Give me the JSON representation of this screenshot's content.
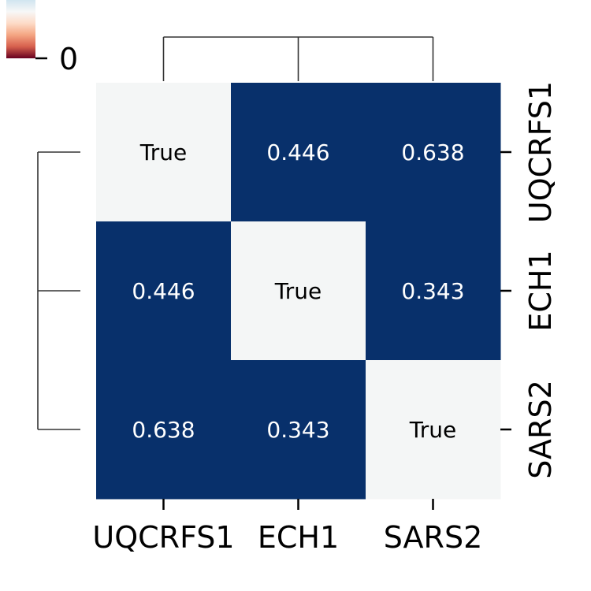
{
  "chart_data": {
    "type": "heatmap",
    "variant": "clustermap",
    "rows": [
      "UQCRFS1",
      "ECH1",
      "SARS2"
    ],
    "columns": [
      "UQCRFS1",
      "ECH1",
      "SARS2"
    ],
    "cells": [
      [
        {
          "value": 1.0,
          "label": "True"
        },
        {
          "value": 0.446,
          "label": "0.446"
        },
        {
          "value": 0.638,
          "label": "0.638"
        }
      ],
      [
        {
          "value": 0.446,
          "label": "0.446"
        },
        {
          "value": 1.0,
          "label": "True"
        },
        {
          "value": 0.343,
          "label": "0.343"
        }
      ],
      [
        {
          "value": 0.638,
          "label": "0.638"
        },
        {
          "value": 0.343,
          "label": "0.343"
        },
        {
          "value": 1.0,
          "label": "True"
        }
      ]
    ],
    "colormap": "RdBu_r",
    "colors": {
      "high": "#08306b",
      "diagonal": "#f4f6f6",
      "text_on_dark": "#ffffff",
      "text_on_light": "#000000"
    },
    "colorbar": {
      "tick_labels": [
        "0"
      ],
      "colors": [
        "#67001f",
        "#d6604d",
        "#f4a582",
        "#fddbc7",
        "#f7f7f7",
        "#d1e5f0"
      ]
    },
    "row_labels_side": "right",
    "column_labels_side": "bottom",
    "dendrograms": [
      "top",
      "left"
    ],
    "title": "",
    "xlabel": "",
    "ylabel": ""
  }
}
